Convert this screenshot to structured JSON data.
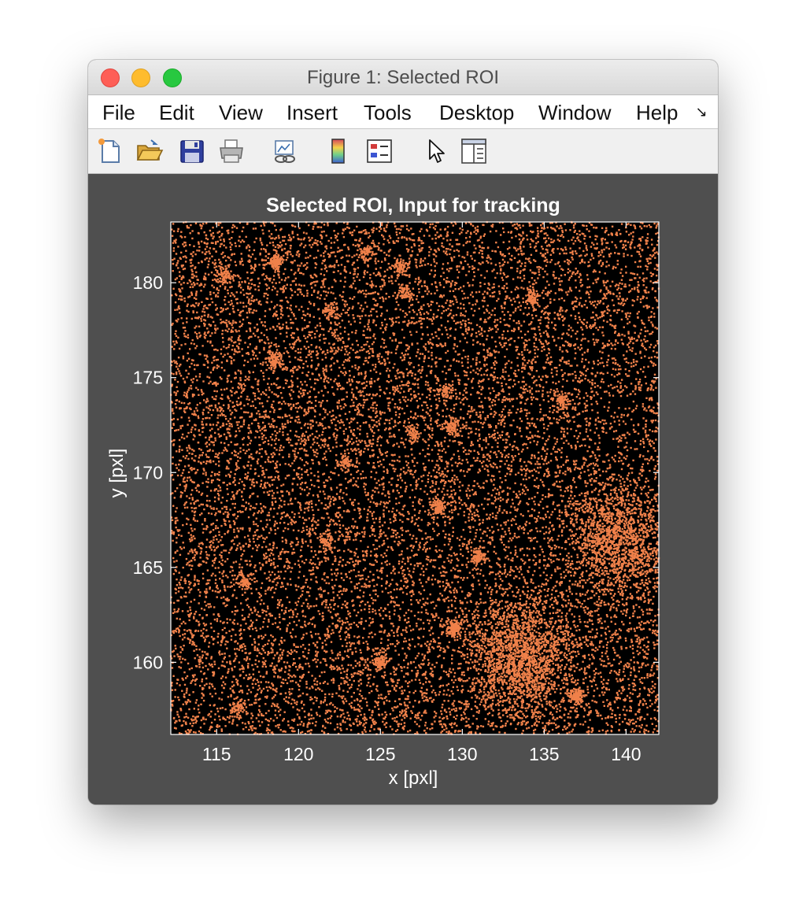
{
  "window": {
    "title": "Figure 1: Selected ROI"
  },
  "menu": {
    "items": [
      "File",
      "Edit",
      "View",
      "Insert",
      "Tools",
      "Desktop",
      "Window",
      "Help"
    ],
    "overflow_icon": "double-chevron-right-icon"
  },
  "toolbar": {
    "tools": [
      {
        "name": "new-figure-button",
        "icon": "new-document-icon"
      },
      {
        "name": "open-file-button",
        "icon": "folder-open-icon"
      },
      {
        "name": "save-figure-button",
        "icon": "floppy-disk-icon"
      },
      {
        "name": "print-figure-button",
        "icon": "printer-icon"
      },
      {
        "name": "link-plot-button",
        "icon": "link-plot-icon"
      },
      {
        "name": "insert-colorbar-button",
        "icon": "colorbar-icon"
      },
      {
        "name": "insert-legend-button",
        "icon": "legend-icon"
      },
      {
        "name": "edit-plot-button",
        "icon": "pointer-arrow-icon"
      },
      {
        "name": "show-plot-tools-button",
        "icon": "plot-tools-icon"
      }
    ]
  },
  "colors": {
    "figure_background": "#4f4f4f",
    "axes_background": "#000000",
    "point_color": "#f0814a",
    "axes_color": "#ffffff"
  },
  "chart_data": {
    "type": "scatter",
    "title": "Selected ROI, Input for tracking",
    "xlabel": "x [pxl]",
    "ylabel": "y [pxl]",
    "xlim": [
      112.2,
      142.0
    ],
    "ylim": [
      156.2,
      183.2
    ],
    "xticks": [
      115,
      120,
      125,
      130,
      135,
      140
    ],
    "yticks": [
      160,
      165,
      170,
      175,
      180
    ],
    "point_color": "#f0814a",
    "marker": "small dot",
    "grid": false,
    "legend": "none",
    "density": {
      "background_points_per_unit2": 18,
      "clusters": [
        {
          "x": 115.5,
          "y": 180.4,
          "weight": 22
        },
        {
          "x": 118.6,
          "y": 181.1,
          "weight": 34
        },
        {
          "x": 124.1,
          "y": 181.6,
          "weight": 18
        },
        {
          "x": 126.3,
          "y": 180.8,
          "weight": 20
        },
        {
          "x": 126.5,
          "y": 179.4,
          "weight": 16
        },
        {
          "x": 134.3,
          "y": 179.2,
          "weight": 24
        },
        {
          "x": 121.9,
          "y": 178.5,
          "weight": 16
        },
        {
          "x": 118.5,
          "y": 175.9,
          "weight": 28
        },
        {
          "x": 136.1,
          "y": 173.8,
          "weight": 22
        },
        {
          "x": 129.0,
          "y": 174.3,
          "weight": 16
        },
        {
          "x": 129.3,
          "y": 172.4,
          "weight": 26
        },
        {
          "x": 127.0,
          "y": 172.1,
          "weight": 18
        },
        {
          "x": 122.9,
          "y": 170.5,
          "weight": 18
        },
        {
          "x": 131.0,
          "y": 165.6,
          "weight": 32
        },
        {
          "x": 121.7,
          "y": 166.4,
          "weight": 22
        },
        {
          "x": 116.7,
          "y": 164.3,
          "weight": 24
        },
        {
          "x": 116.3,
          "y": 157.6,
          "weight": 20
        },
        {
          "x": 139.6,
          "y": 166.5,
          "weight": 80
        },
        {
          "x": 133.6,
          "y": 160.3,
          "weight": 110
        },
        {
          "x": 129.5,
          "y": 161.8,
          "weight": 40
        },
        {
          "x": 125.0,
          "y": 160.0,
          "weight": 30
        },
        {
          "x": 137.0,
          "y": 158.2,
          "weight": 40
        },
        {
          "x": 128.5,
          "y": 168.2,
          "weight": 30
        }
      ]
    }
  }
}
